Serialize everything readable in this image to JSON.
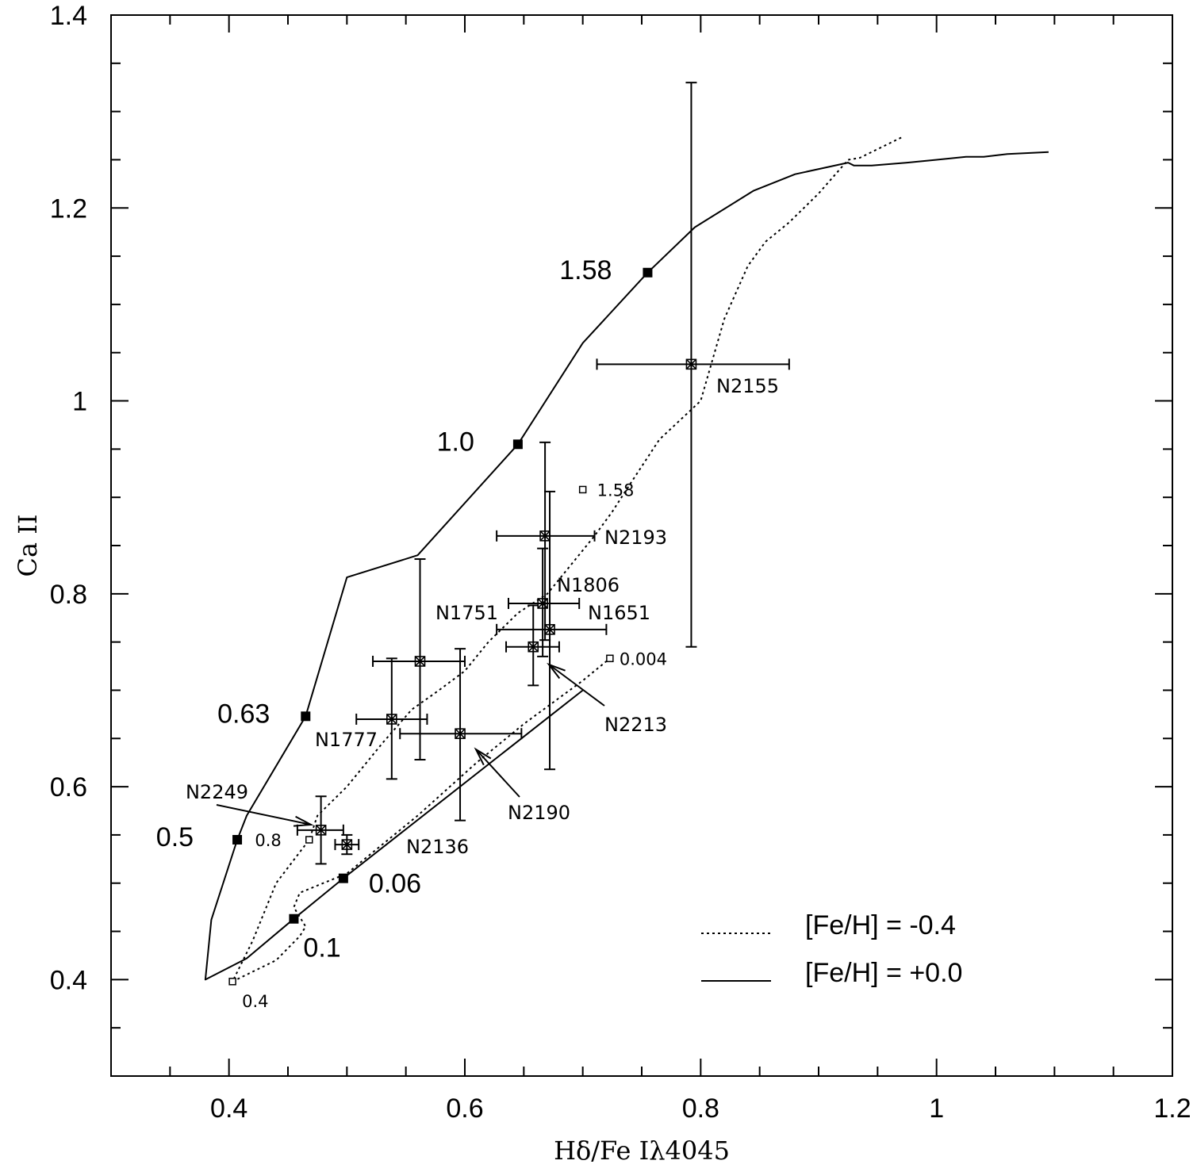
{
  "chart_data": {
    "type": "scatter",
    "title": "",
    "xlabel": "Hδ/Fe Iλ4045",
    "ylabel": "Ca II",
    "xlim": [
      0.3,
      1.2
    ],
    "ylim": [
      0.3,
      1.4
    ],
    "x_ticks": [
      0.4,
      0.6,
      0.8,
      1.0,
      1.2
    ],
    "x_tick_labels": [
      "0.4",
      "0.6",
      "0.8",
      "1",
      "1.2"
    ],
    "y_ticks": [
      0.4,
      0.6,
      0.8,
      1.0,
      1.2,
      1.4
    ],
    "y_tick_labels": [
      "0.4",
      "0.6",
      "0.8",
      "1",
      "1.2",
      "1.4"
    ],
    "grid": false,
    "legend_position": "bottom-right",
    "series": [
      {
        "name": "[Fe/H] = +0.0",
        "style": "solid",
        "x": [
          1.095,
          1.06,
          1.04,
          1.025,
          1.0,
          0.975,
          0.945,
          0.93,
          0.925,
          0.88,
          0.845,
          0.795,
          0.755,
          0.7,
          0.645,
          0.56,
          0.5,
          0.465,
          0.415,
          0.407,
          0.385,
          0.38,
          0.415,
          0.455,
          0.497,
          0.7
        ],
        "y": [
          1.258,
          1.256,
          1.253,
          1.253,
          1.25,
          1.247,
          1.244,
          1.244,
          1.247,
          1.235,
          1.218,
          1.18,
          1.133,
          1.06,
          0.955,
          0.84,
          0.817,
          0.673,
          0.57,
          0.545,
          0.462,
          0.4,
          0.422,
          0.463,
          0.505,
          0.7
        ]
      },
      {
        "name": "[Fe/H] = -0.4",
        "style": "dotted",
        "x": [
          0.97,
          0.935,
          0.925,
          0.9,
          0.875,
          0.855,
          0.84,
          0.82,
          0.8,
          0.765,
          0.737,
          0.725,
          0.71,
          0.69,
          0.67,
          0.645,
          0.62,
          0.6,
          0.578,
          0.555,
          0.53,
          0.5,
          0.475,
          0.468,
          0.44,
          0.42,
          0.403
        ],
        "y": [
          1.273,
          1.252,
          1.25,
          1.215,
          1.185,
          1.165,
          1.14,
          1.085,
          1.0,
          0.96,
          0.908,
          0.885,
          0.86,
          0.83,
          0.8,
          0.78,
          0.75,
          0.72,
          0.7,
          0.68,
          0.645,
          0.6,
          0.57,
          0.545,
          0.5,
          0.44,
          0.398
        ]
      },
      {
        "name": "",
        "style": "dotted",
        "x": [
          0.403,
          0.44,
          0.46,
          0.465,
          0.455,
          0.46,
          0.48,
          0.5,
          0.52,
          0.56,
          0.61,
          0.65,
          0.7,
          0.723
        ],
        "y": [
          0.398,
          0.42,
          0.445,
          0.455,
          0.475,
          0.49,
          0.5,
          0.51,
          0.53,
          0.57,
          0.625,
          0.665,
          0.71,
          0.733
        ]
      }
    ],
    "age_markers_solar": [
      {
        "label": "1.58",
        "x": 0.755,
        "y": 1.133
      },
      {
        "label": "1.0",
        "x": 0.645,
        "y": 0.955
      },
      {
        "label": "0.63",
        "x": 0.465,
        "y": 0.673
      },
      {
        "label": "0.5",
        "x": 0.407,
        "y": 0.545
      },
      {
        "label": "0.06",
        "x": 0.497,
        "y": 0.505
      },
      {
        "label": "0.1",
        "x": 0.455,
        "y": 0.463
      }
    ],
    "age_markers_subsolar": [
      {
        "label": "1.58",
        "x": 0.7,
        "y": 0.908
      },
      {
        "label": "0.8",
        "x": 0.468,
        "y": 0.545
      },
      {
        "label": "0.004",
        "x": 0.723,
        "y": 0.733
      },
      {
        "label": "0.4",
        "x": 0.403,
        "y": 0.398
      }
    ],
    "clusters": [
      {
        "name": "N2155",
        "x": 0.792,
        "y": 1.038,
        "xerr_lo": 0.712,
        "xerr_hi": 0.875,
        "yerr_lo": 0.745,
        "yerr_hi": 1.33
      },
      {
        "name": "N2193",
        "x": 0.668,
        "y": 0.86,
        "xerr_lo": 0.627,
        "xerr_hi": 0.71,
        "yerr_lo": 0.752,
        "yerr_hi": 0.957
      },
      {
        "name": "N1806",
        "x": 0.666,
        "y": 0.79,
        "xerr_lo": 0.637,
        "xerr_hi": 0.697,
        "yerr_lo": 0.735,
        "yerr_hi": 0.847
      },
      {
        "name": "N1651",
        "x": 0.672,
        "y": 0.763,
        "xerr_lo": 0.627,
        "xerr_hi": 0.72,
        "yerr_lo": 0.618,
        "yerr_hi": 0.906
      },
      {
        "name": "N2213",
        "x": 0.658,
        "y": 0.745,
        "xerr_lo": 0.635,
        "xerr_hi": 0.68,
        "yerr_lo": 0.705,
        "yerr_hi": 0.788
      },
      {
        "name": "N1751",
        "x": 0.562,
        "y": 0.73,
        "xerr_lo": 0.522,
        "xerr_hi": 0.6,
        "yerr_lo": 0.628,
        "yerr_hi": 0.836
      },
      {
        "name": "N1777",
        "x": 0.538,
        "y": 0.67,
        "xerr_lo": 0.508,
        "xerr_hi": 0.568,
        "yerr_lo": 0.608,
        "yerr_hi": 0.733
      },
      {
        "name": "N2190",
        "x": 0.596,
        "y": 0.655,
        "xerr_lo": 0.545,
        "xerr_hi": 0.648,
        "yerr_lo": 0.565,
        "yerr_hi": 0.743
      },
      {
        "name": "N2249",
        "x": 0.478,
        "y": 0.555,
        "xerr_lo": 0.458,
        "xerr_hi": 0.497,
        "yerr_lo": 0.52,
        "yerr_hi": 0.59
      },
      {
        "name": "N2136",
        "x": 0.5,
        "y": 0.54,
        "xerr_lo": 0.49,
        "xerr_hi": 0.51,
        "yerr_lo": 0.53,
        "yerr_hi": 0.55
      }
    ]
  }
}
